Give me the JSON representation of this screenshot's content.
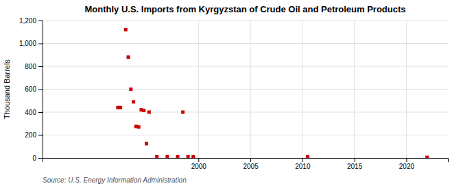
{
  "chart_data": {
    "type": "scatter",
    "title": "Monthly U.S. Imports from Kyrgyzstan of Crude Oil and Petroleum Products",
    "ylabel": "Thousand Barrels",
    "source": "Source: U.S. Energy Information Administration",
    "color": "#cc0000",
    "marker": "square",
    "grid": true,
    "xlim": [
      1985,
      2024
    ],
    "ylim": [
      0,
      1200
    ],
    "xticks": [
      2000,
      2005,
      2010,
      2015,
      2020
    ],
    "yticks": [
      0,
      200,
      400,
      600,
      800,
      {
        "value": 1000,
        "label": "1,000"
      },
      {
        "value": 1200,
        "label": "1,200"
      }
    ],
    "x": [
      1992.25,
      1992.5,
      1993.0,
      1993.25,
      1993.5,
      1993.75,
      1994.0,
      1994.25,
      1994.5,
      1994.75,
      1995.0,
      1995.25,
      1996.0,
      1997.0,
      1998.0,
      1998.5,
      1999.0,
      1999.5,
      2010.5,
      2022.0
    ],
    "values": [
      440,
      440,
      1120,
      880,
      600,
      490,
      275,
      270,
      420,
      415,
      125,
      400,
      10,
      10,
      10,
      400,
      10,
      10,
      10,
      5
    ]
  }
}
